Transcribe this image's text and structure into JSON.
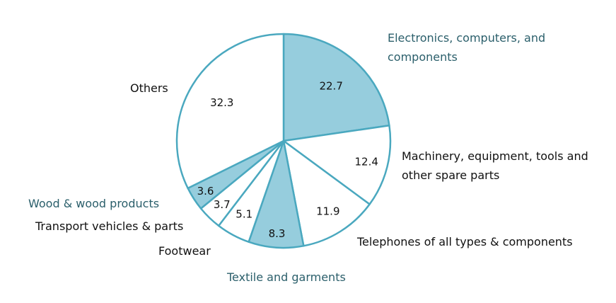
{
  "chart_data": {
    "type": "pie",
    "title": "",
    "slices": [
      {
        "label": "Electronics, computers, and components",
        "value": 22.7,
        "fill": "#96cddd",
        "label_color": "#2b5f6b"
      },
      {
        "label": "Machinery, equipment, tools and other spare parts",
        "value": 12.4,
        "fill": "#ffffff",
        "label_color": "#111111"
      },
      {
        "label": "Telephones of all types & components",
        "value": 11.9,
        "fill": "#ffffff",
        "label_color": "#111111"
      },
      {
        "label": "Textile and garments",
        "value": 8.3,
        "fill": "#96cddd",
        "label_color": "#2b5f6b"
      },
      {
        "label": "Footwear",
        "value": 5.1,
        "fill": "#ffffff",
        "label_color": "#111111"
      },
      {
        "label": "Transport vehicles & parts",
        "value": 3.7,
        "fill": "#ffffff",
        "label_color": "#111111"
      },
      {
        "label": "Wood & wood products",
        "value": 3.6,
        "fill": "#96cddd",
        "label_color": "#2b5f6b"
      },
      {
        "label": "Others",
        "value": 32.3,
        "fill": "#ffffff",
        "label_color": "#111111"
      }
    ],
    "stroke_color": "#4aa8bf"
  }
}
